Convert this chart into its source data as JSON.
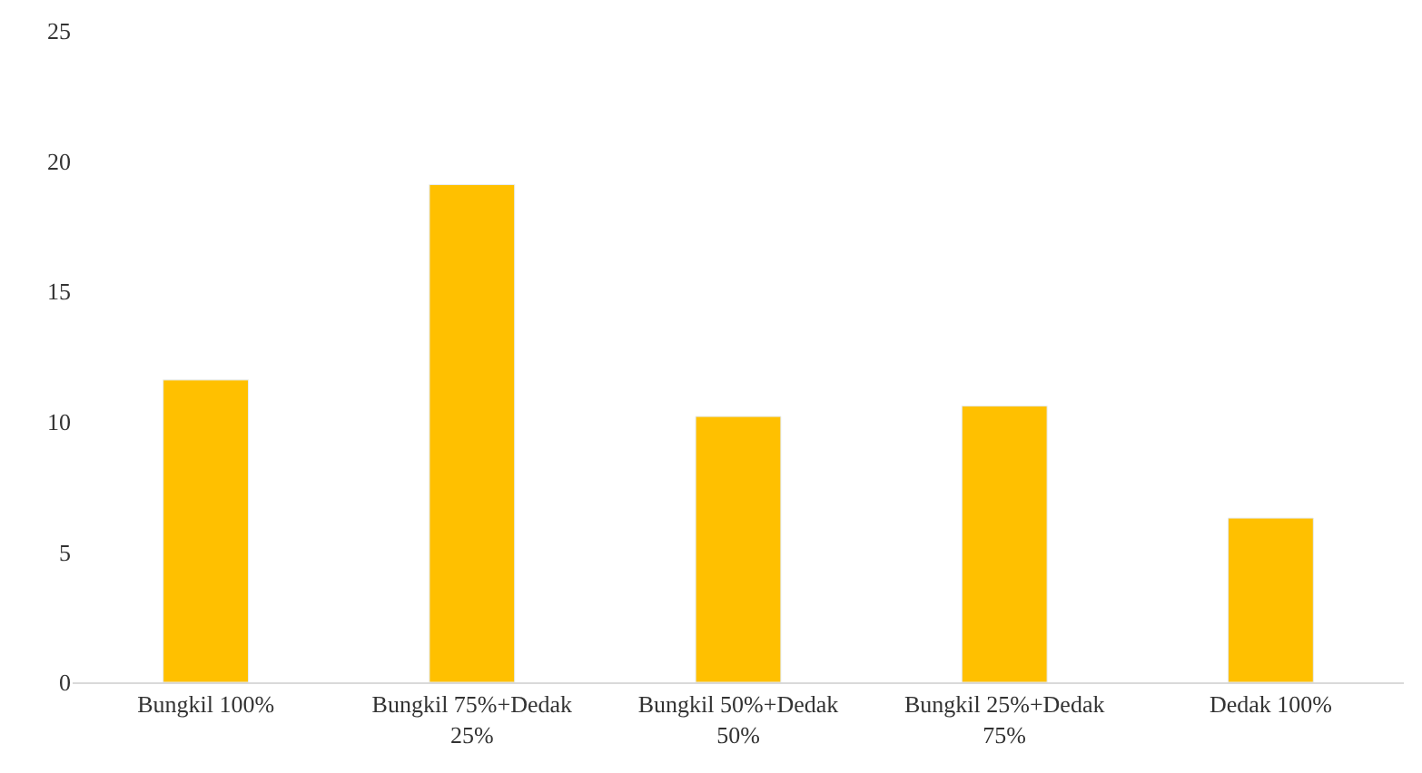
{
  "chart_data": {
    "type": "bar",
    "categories": [
      "Bungkil 100%",
      "Bungkil 75%+Dedak 25%",
      "Bungkil 50%+Dedak 50%",
      "Bungkil 25%+Dedak 75%",
      "Dedak 100%"
    ],
    "values": [
      11.6,
      19.1,
      10.2,
      10.6,
      6.3
    ],
    "color": "#ffc000",
    "ylim": [
      0,
      25
    ],
    "yticks": [
      0,
      5,
      10,
      15,
      20,
      25
    ],
    "grid": false
  }
}
